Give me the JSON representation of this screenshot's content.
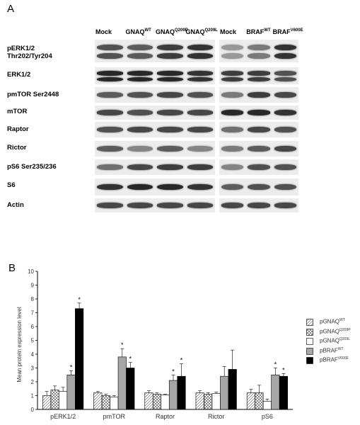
{
  "panel_a": {
    "letter": "A",
    "lane_groups": [
      {
        "lanes": [
          {
            "base": "Mock",
            "sup": ""
          },
          {
            "base": "GNAQ",
            "sup": "WT"
          },
          {
            "base": "GNAQ",
            "sup": "Q209P"
          },
          {
            "base": "GNAQ",
            "sup": "Q209L"
          }
        ]
      },
      {
        "lanes": [
          {
            "base": "Mock",
            "sup": ""
          },
          {
            "base": "BRAF",
            "sup": "WT"
          },
          {
            "base": "BRAF",
            "sup": "V600E"
          }
        ]
      }
    ],
    "rows": [
      {
        "label": "pERK1/2",
        "label2": "Thr202/Tyr204",
        "doublet": true,
        "intensity": [
          0.75,
          0.7,
          0.85,
          0.9,
          0.4,
          0.55,
          0.9
        ]
      },
      {
        "label": "ERK1/2",
        "label2": "",
        "doublet": true,
        "intensity": [
          0.95,
          0.95,
          0.95,
          0.9,
          0.85,
          0.85,
          0.75
        ]
      },
      {
        "label": "pmTOR Ser2448",
        "label2": "",
        "doublet": false,
        "intensity": [
          0.7,
          0.75,
          0.8,
          0.75,
          0.55,
          0.85,
          0.8
        ]
      },
      {
        "label": "mTOR",
        "label2": "",
        "doublet": false,
        "intensity": [
          0.8,
          0.75,
          0.8,
          0.8,
          0.95,
          0.95,
          0.9
        ]
      },
      {
        "label": "Raptor",
        "label2": "",
        "doublet": false,
        "intensity": [
          0.75,
          0.8,
          0.8,
          0.8,
          0.6,
          0.8,
          0.75
        ]
      },
      {
        "label": "Rictor",
        "label2": "",
        "doublet": false,
        "intensity": [
          0.7,
          0.5,
          0.7,
          0.5,
          0.55,
          0.7,
          0.8
        ]
      },
      {
        "label": "pS6 Ser235/236",
        "label2": "",
        "doublet": false,
        "intensity": [
          0.6,
          0.8,
          0.85,
          0.85,
          0.5,
          0.75,
          0.75
        ]
      },
      {
        "label": "S6",
        "label2": "",
        "doublet": false,
        "intensity": [
          0.9,
          0.95,
          0.95,
          0.9,
          0.7,
          0.75,
          0.75
        ]
      },
      {
        "label": "Actin",
        "label2": "",
        "doublet": false,
        "intensity": [
          0.8,
          0.8,
          0.8,
          0.8,
          0.8,
          0.8,
          0.8
        ]
      }
    ]
  },
  "panel_b": {
    "letter": "B"
  },
  "chart_data": {
    "type": "bar",
    "title": "",
    "xlabel": "",
    "ylabel": "Mean protein expression level",
    "ylim": [
      0,
      10
    ],
    "yticks": [
      "0",
      "1",
      "2",
      "3",
      "4",
      "5",
      "6",
      "7",
      "8",
      "9",
      "10"
    ],
    "categories": [
      "pERK1/2",
      "pmTOR",
      "Raptor",
      "Rictor",
      "pS6"
    ],
    "series": [
      {
        "name_base": "pGNAQ",
        "name_sup": "WT",
        "values": [
          1.0,
          1.2,
          1.2,
          1.2,
          1.2
        ],
        "errors": [
          0.3,
          0.1,
          0.15,
          0.15,
          0.25
        ],
        "fill": "hatch"
      },
      {
        "name_base": "pGNAQ",
        "name_sup": "Q209P",
        "values": [
          1.4,
          1.0,
          1.1,
          1.1,
          1.2
        ],
        "errors": [
          0.3,
          0.1,
          0.1,
          0.1,
          0.55
        ],
        "fill": "crosshatch"
      },
      {
        "name_base": "pGNAQ",
        "name_sup": "Q209L",
        "values": [
          1.3,
          0.9,
          1.05,
          1.15,
          0.6
        ],
        "errors": [
          0.3,
          0.1,
          0.05,
          0.1,
          0.15
        ],
        "fill": "#ffffff"
      },
      {
        "name_base": "pBRAF",
        "name_sup": "WT",
        "values": [
          2.5,
          3.8,
          2.1,
          2.4,
          2.5
        ],
        "errors": [
          0.3,
          0.6,
          0.4,
          0.7,
          0.5
        ],
        "fill": "#a6a6a6"
      },
      {
        "name_base": "pBRAF",
        "name_sup": "V600E",
        "values": [
          7.3,
          3.0,
          2.4,
          2.9,
          2.4
        ],
        "errors": [
          0.4,
          0.4,
          0.9,
          1.4,
          0.2
        ],
        "fill": "#000000"
      }
    ],
    "significance": [
      [
        false,
        false,
        false,
        false,
        false
      ],
      [
        false,
        false,
        false,
        false,
        false
      ],
      [
        false,
        false,
        false,
        false,
        false
      ],
      [
        true,
        true,
        true,
        false,
        true
      ],
      [
        true,
        true,
        true,
        false,
        true
      ]
    ],
    "sig_marker": "*",
    "legend": "right",
    "grid": false
  }
}
